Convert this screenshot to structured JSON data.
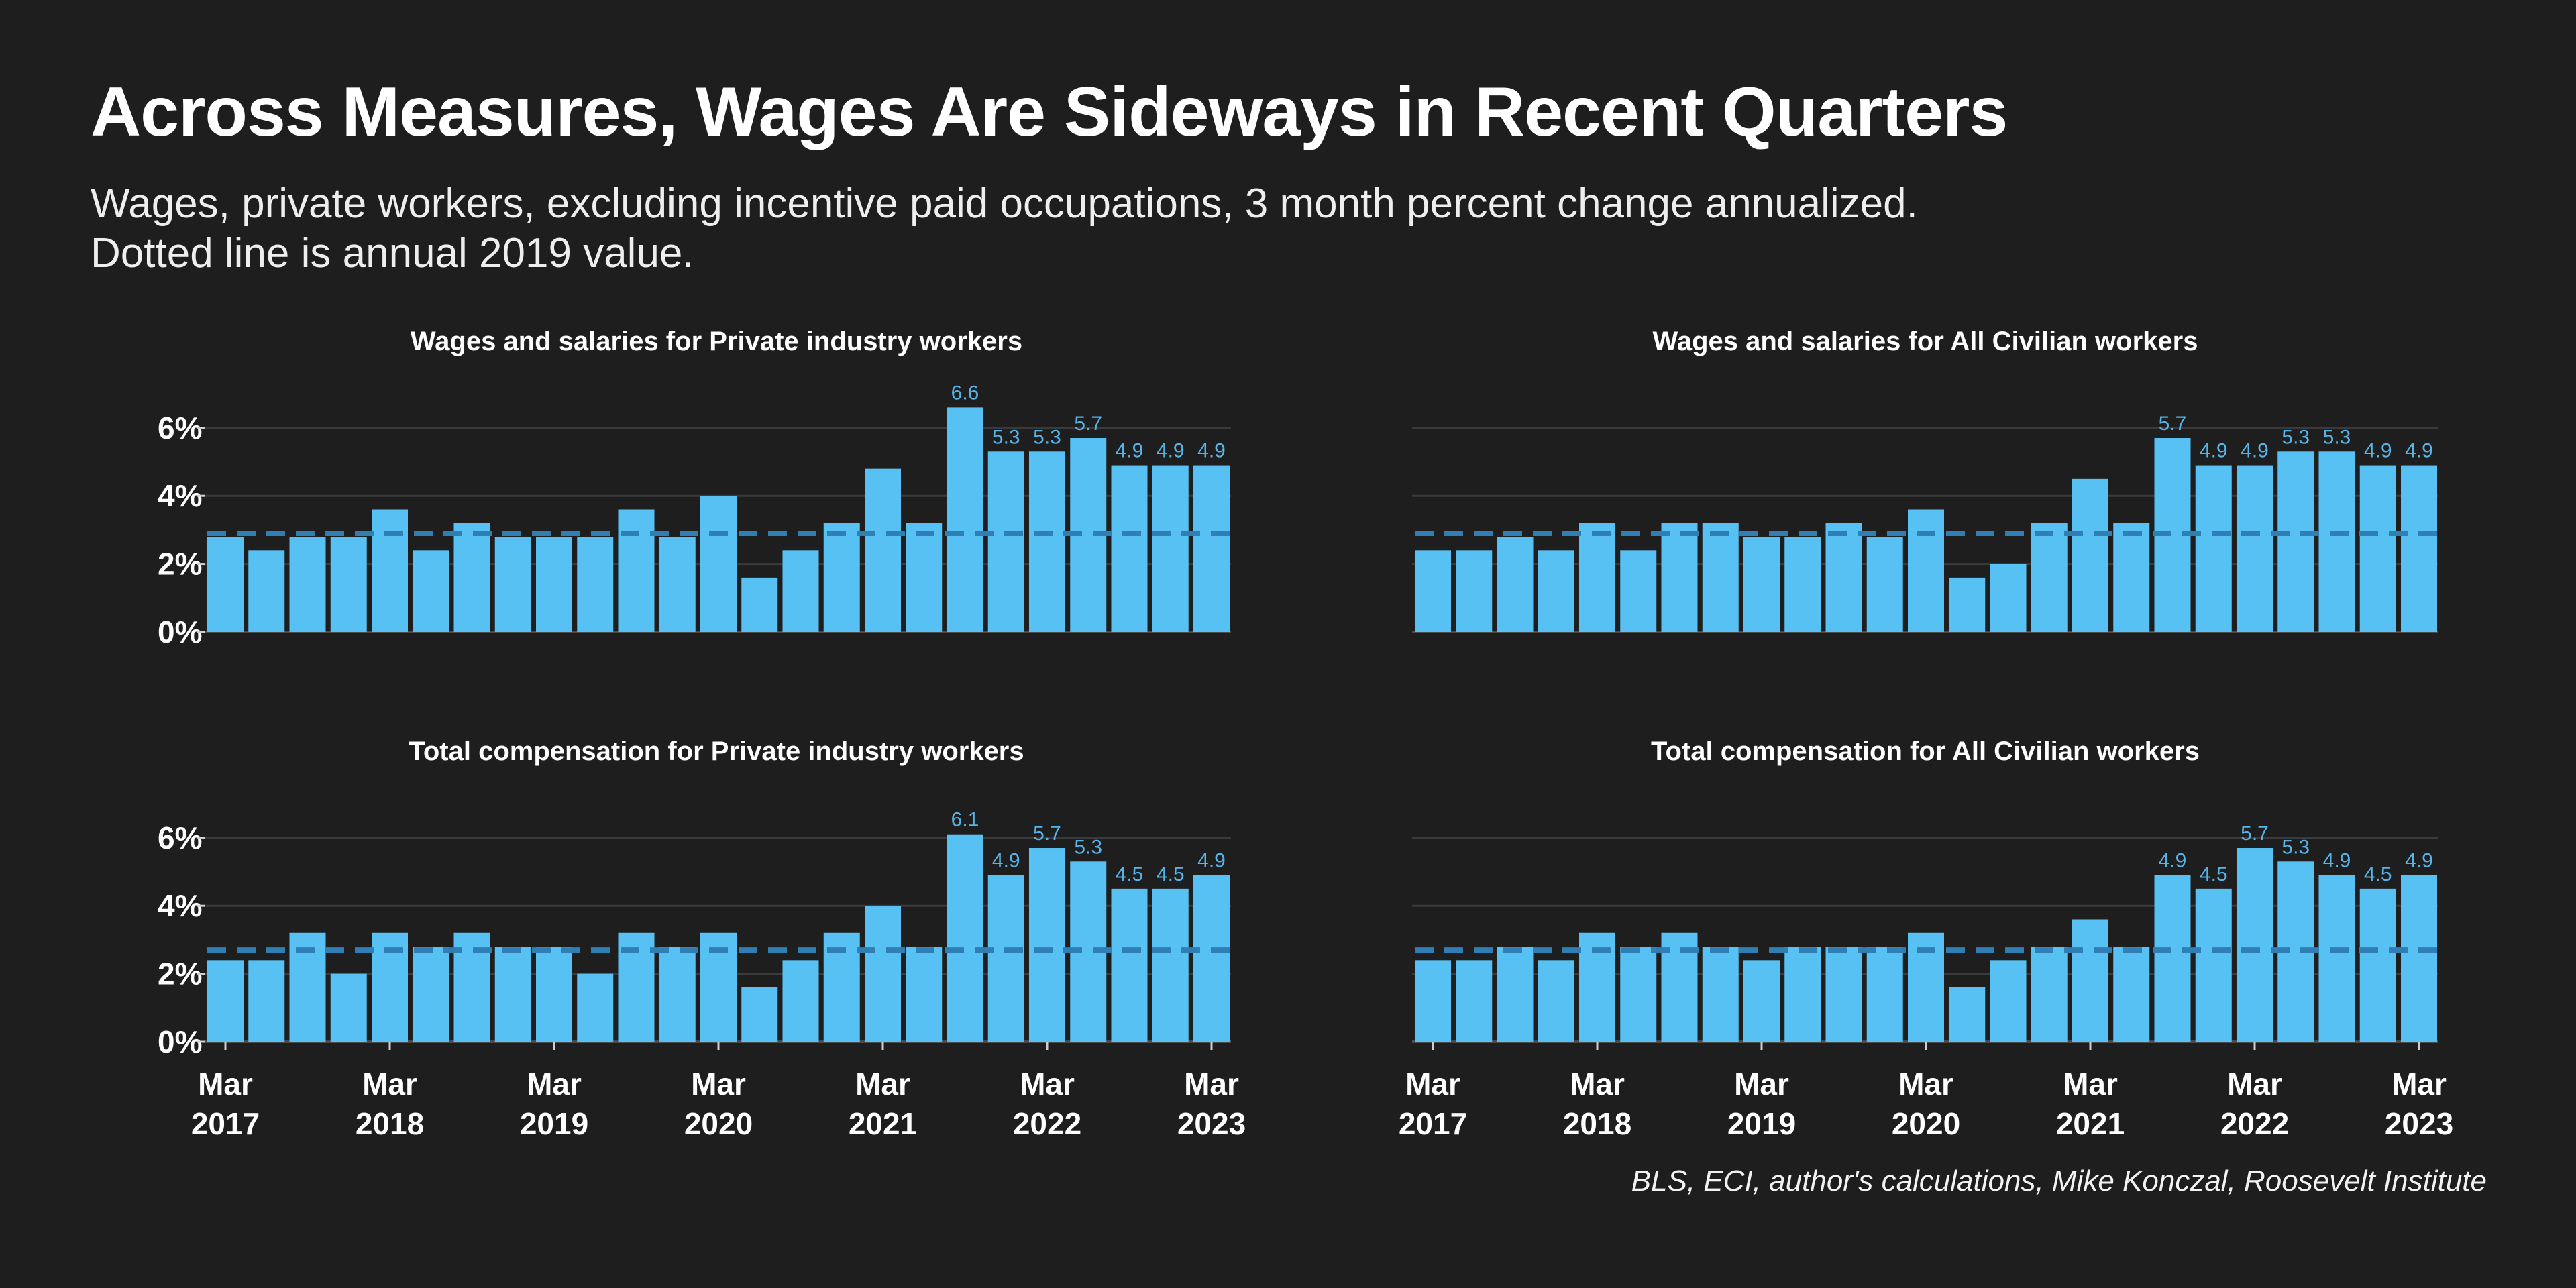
{
  "title": "Across Measures, Wages Are Sideways in Recent Quarters",
  "subtitle_lines": [
    "Wages, private workers, excluding incentive paid occupations, 3 month percent change annualized.",
    "Dotted line is annual 2019 value."
  ],
  "source": "BLS, ECI, author's calculations, Mike Konczal, Roosevelt Institute",
  "colors": {
    "background": "#1e1e1e",
    "bar": "#56c1f2",
    "reference_line": "#2f7fb5",
    "label": "#56b4e9",
    "grid": "#3a3a3a"
  },
  "chart_data": [
    {
      "type": "bar",
      "title": "Wages and salaries for Private industry workers",
      "x": [
        "2017-03",
        "2017-06",
        "2017-09",
        "2017-12",
        "2018-03",
        "2018-06",
        "2018-09",
        "2018-12",
        "2019-03",
        "2019-06",
        "2019-09",
        "2019-12",
        "2020-03",
        "2020-06",
        "2020-09",
        "2020-12",
        "2021-03",
        "2021-06",
        "2021-09",
        "2021-12",
        "2022-03",
        "2022-06",
        "2022-09",
        "2022-12",
        "2023-03"
      ],
      "values": [
        2.8,
        2.4,
        2.8,
        2.8,
        3.6,
        2.4,
        3.2,
        2.8,
        2.8,
        2.8,
        3.6,
        2.8,
        4.0,
        1.6,
        2.4,
        3.2,
        4.8,
        3.2,
        6.6,
        5.3,
        5.3,
        5.7,
        4.9,
        4.9,
        4.9
      ],
      "data_labels": [
        "",
        "",
        "",
        "",
        "",
        "",
        "",
        "",
        "",
        "",
        "",
        "",
        "",
        "",
        "",
        "",
        "",
        "",
        "6.6",
        "5.3",
        "5.3",
        "5.7",
        "4.9",
        "4.9",
        "4.9"
      ],
      "reference_line": 2.9,
      "ylim": [
        0,
        7
      ],
      "yticks": [
        "0%",
        "2%",
        "4%",
        "6%"
      ],
      "ytick_values": [
        0,
        2,
        4,
        6
      ],
      "xtick_labels": [],
      "grid": true
    },
    {
      "type": "bar",
      "title": "Wages and salaries for All Civilian workers",
      "x": [
        "2017-03",
        "2017-06",
        "2017-09",
        "2017-12",
        "2018-03",
        "2018-06",
        "2018-09",
        "2018-12",
        "2019-03",
        "2019-06",
        "2019-09",
        "2019-12",
        "2020-03",
        "2020-06",
        "2020-09",
        "2020-12",
        "2021-03",
        "2021-06",
        "2021-09",
        "2021-12",
        "2022-03",
        "2022-06",
        "2022-09",
        "2022-12",
        "2023-03"
      ],
      "values": [
        2.4,
        2.4,
        2.8,
        2.4,
        3.2,
        2.4,
        3.2,
        3.2,
        2.8,
        2.8,
        3.2,
        2.8,
        3.6,
        1.6,
        2.0,
        3.2,
        4.5,
        3.2,
        5.7,
        4.9,
        4.9,
        5.3,
        5.3,
        4.9,
        4.9
      ],
      "data_labels": [
        "",
        "",
        "",
        "",
        "",
        "",
        "",
        "",
        "",
        "",
        "",
        "",
        "",
        "",
        "",
        "",
        "",
        "",
        "5.7",
        "4.9",
        "4.9",
        "5.3",
        "5.3",
        "4.9",
        "4.9"
      ],
      "reference_line": 2.9,
      "ylim": [
        0,
        7
      ],
      "yticks": [],
      "ytick_values": [
        0,
        2,
        4,
        6
      ],
      "xtick_labels": [],
      "grid": true
    },
    {
      "type": "bar",
      "title": "Total compensation for Private industry workers",
      "x": [
        "2017-03",
        "2017-06",
        "2017-09",
        "2017-12",
        "2018-03",
        "2018-06",
        "2018-09",
        "2018-12",
        "2019-03",
        "2019-06",
        "2019-09",
        "2019-12",
        "2020-03",
        "2020-06",
        "2020-09",
        "2020-12",
        "2021-03",
        "2021-06",
        "2021-09",
        "2021-12",
        "2022-03",
        "2022-06",
        "2022-09",
        "2022-12",
        "2023-03"
      ],
      "values": [
        2.4,
        2.4,
        3.2,
        2.0,
        3.2,
        2.8,
        3.2,
        2.8,
        2.8,
        2.0,
        3.2,
        2.8,
        3.2,
        1.6,
        2.4,
        3.2,
        4.0,
        2.8,
        6.1,
        4.9,
        5.7,
        5.3,
        4.5,
        4.5,
        4.9
      ],
      "data_labels": [
        "",
        "",
        "",
        "",
        "",
        "",
        "",
        "",
        "",
        "",
        "",
        "",
        "",
        "",
        "",
        "",
        "",
        "",
        "6.1",
        "4.9",
        "5.7",
        "5.3",
        "4.5",
        "4.5",
        "4.9"
      ],
      "reference_line": 2.7,
      "ylim": [
        0,
        7
      ],
      "yticks": [
        "0%",
        "2%",
        "4%",
        "6%"
      ],
      "ytick_values": [
        0,
        2,
        4,
        6
      ],
      "xtick_labels": [
        [
          "Mar",
          "2017"
        ],
        [
          "Mar",
          "2018"
        ],
        [
          "Mar",
          "2019"
        ],
        [
          "Mar",
          "2020"
        ],
        [
          "Mar",
          "2021"
        ],
        [
          "Mar",
          "2022"
        ],
        [
          "Mar",
          "2023"
        ]
      ],
      "xtick_indices": [
        0,
        4,
        8,
        12,
        16,
        20,
        24
      ],
      "grid": true
    },
    {
      "type": "bar",
      "title": "Total compensation for All Civilian workers",
      "x": [
        "2017-03",
        "2017-06",
        "2017-09",
        "2017-12",
        "2018-03",
        "2018-06",
        "2018-09",
        "2018-12",
        "2019-03",
        "2019-06",
        "2019-09",
        "2019-12",
        "2020-03",
        "2020-06",
        "2020-09",
        "2020-12",
        "2021-03",
        "2021-06",
        "2021-09",
        "2021-12",
        "2022-03",
        "2022-06",
        "2022-09",
        "2022-12",
        "2023-03"
      ],
      "values": [
        2.4,
        2.4,
        2.8,
        2.4,
        3.2,
        2.8,
        3.2,
        2.8,
        2.4,
        2.8,
        2.8,
        2.8,
        3.2,
        1.6,
        2.4,
        2.8,
        3.6,
        2.8,
        4.9,
        4.5,
        5.7,
        5.3,
        4.9,
        4.5,
        4.9
      ],
      "data_labels": [
        "",
        "",
        "",
        "",
        "",
        "",
        "",
        "",
        "",
        "",
        "",
        "",
        "",
        "",
        "",
        "",
        "",
        "",
        "4.9",
        "4.5",
        "5.7",
        "5.3",
        "4.9",
        "4.5",
        "4.9"
      ],
      "reference_line": 2.7,
      "ylim": [
        0,
        7
      ],
      "yticks": [],
      "ytick_values": [
        0,
        2,
        4,
        6
      ],
      "xtick_labels": [
        [
          "Mar",
          "2017"
        ],
        [
          "Mar",
          "2018"
        ],
        [
          "Mar",
          "2019"
        ],
        [
          "Mar",
          "2020"
        ],
        [
          "Mar",
          "2021"
        ],
        [
          "Mar",
          "2022"
        ],
        [
          "Mar",
          "2023"
        ]
      ],
      "xtick_indices": [
        0,
        4,
        8,
        12,
        16,
        20,
        24
      ],
      "grid": true
    }
  ]
}
